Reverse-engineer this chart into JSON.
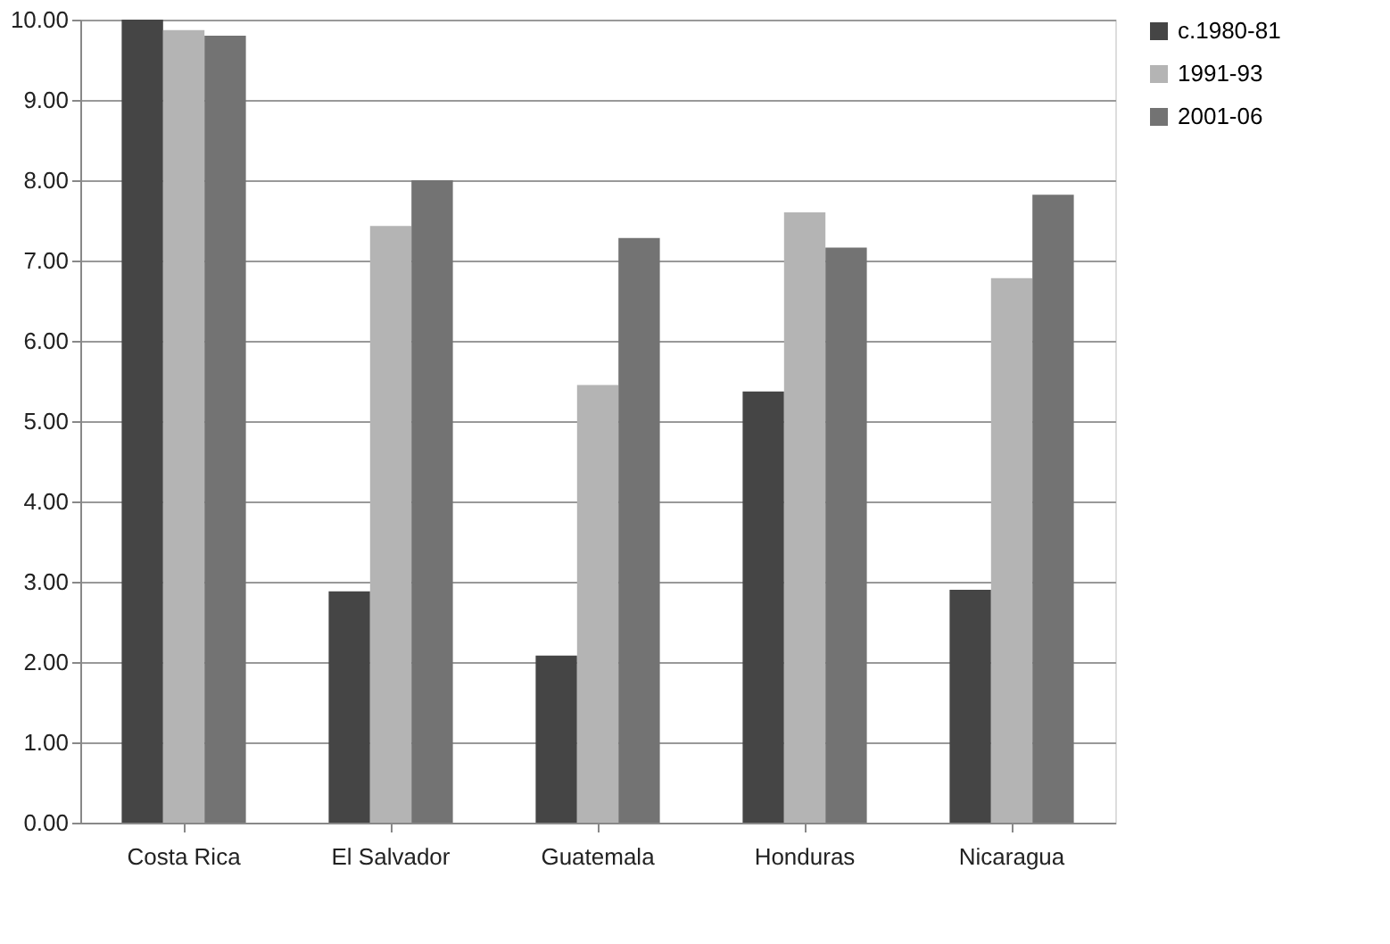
{
  "chart_data": {
    "type": "bar",
    "categories": [
      "Costa Rica",
      "El Salvador",
      "Guatemala",
      "Honduras",
      "Nicaragua"
    ],
    "series": [
      {
        "name": "c.1980-81",
        "color": "#454545",
        "values": [
          10.0,
          2.88,
          2.08,
          5.37,
          2.9
        ]
      },
      {
        "name": "1991-93",
        "color": "#b4b4b4",
        "values": [
          9.87,
          7.43,
          5.45,
          7.6,
          6.78
        ]
      },
      {
        "name": "2001-06",
        "color": "#737373",
        "values": [
          9.8,
          8.0,
          7.28,
          7.16,
          7.82
        ]
      }
    ],
    "ylim": [
      0,
      10
    ],
    "yticks": [
      {
        "value": 0,
        "label": "0.00"
      },
      {
        "value": 1,
        "label": "1.00"
      },
      {
        "value": 2,
        "label": "2.00"
      },
      {
        "value": 3,
        "label": "3.00"
      },
      {
        "value": 4,
        "label": "4.00"
      },
      {
        "value": 5,
        "label": "5.00"
      },
      {
        "value": 6,
        "label": "6.00"
      },
      {
        "value": 7,
        "label": "7.00"
      },
      {
        "value": 8,
        "label": "8.00"
      },
      {
        "value": 9,
        "label": "9.00"
      },
      {
        "value": 10,
        "label": "10.00"
      }
    ],
    "grid": "y",
    "legend": "right"
  }
}
